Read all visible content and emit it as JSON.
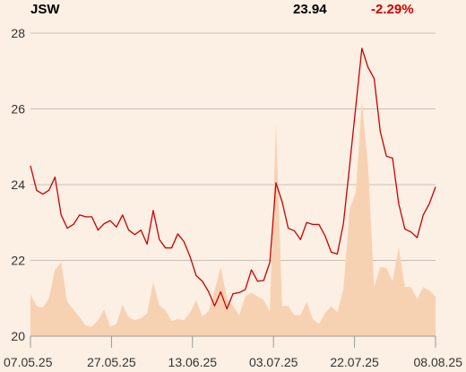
{
  "header": {
    "ticker": "JSW",
    "price": "23.94",
    "change": "-2.29%"
  },
  "colors": {
    "background": "#fcefe3",
    "line": "#cc0000",
    "volume_fill": "#f7d2b2",
    "grid": "#c8c0b8",
    "axis": "#999999"
  },
  "chart_data": {
    "type": "line",
    "title": "",
    "xlabel": "",
    "ylabel": "",
    "ylim": [
      20,
      28
    ],
    "yticks": [
      20,
      22,
      24,
      26,
      28
    ],
    "x_tick_labels": [
      "07.05.25",
      "27.05.25",
      "13.06.25",
      "03.07.25",
      "22.07.25",
      "08.08.25"
    ],
    "grid": true,
    "series": [
      {
        "kind": "price-line",
        "values": [
          24.5,
          23.85,
          23.75,
          23.85,
          24.2,
          23.2,
          22.85,
          22.95,
          23.2,
          23.15,
          23.15,
          22.8,
          22.97,
          23.05,
          22.88,
          23.2,
          22.8,
          22.68,
          22.8,
          22.43,
          23.32,
          22.55,
          22.33,
          22.33,
          22.7,
          22.5,
          22.1,
          21.6,
          21.45,
          21.18,
          20.8,
          21.17,
          20.72,
          21.12,
          21.15,
          21.23,
          21.75,
          21.45,
          21.47,
          21.95,
          24.05,
          23.55,
          22.85,
          22.78,
          22.55,
          23.0,
          22.95,
          22.95,
          22.65,
          22.22,
          22.17,
          22.98,
          24.5,
          26.05,
          27.6,
          27.1,
          26.8,
          25.4,
          24.75,
          24.7,
          23.5,
          22.83,
          22.75,
          22.6,
          23.2,
          23.5,
          23.94
        ]
      },
      {
        "kind": "volume-area",
        "values": [
          21.1,
          20.8,
          20.75,
          21.0,
          21.75,
          21.95,
          20.9,
          20.7,
          20.5,
          20.28,
          20.25,
          20.42,
          20.7,
          20.25,
          20.32,
          20.82,
          20.5,
          20.42,
          20.48,
          20.6,
          21.42,
          20.82,
          20.68,
          20.4,
          20.45,
          20.42,
          20.62,
          20.95,
          20.52,
          20.65,
          21.2,
          21.83,
          21.0,
          20.8,
          20.55,
          21.05,
          21.15,
          21.05,
          20.95,
          20.65,
          25.6,
          20.8,
          20.8,
          20.55,
          20.55,
          20.9,
          20.45,
          20.32,
          20.6,
          20.8,
          20.62,
          21.25,
          23.35,
          23.8,
          26.2,
          24.5,
          21.3,
          21.83,
          21.8,
          21.45,
          22.35,
          21.3,
          21.3,
          20.98,
          21.3,
          21.2,
          21.05
        ]
      }
    ]
  }
}
